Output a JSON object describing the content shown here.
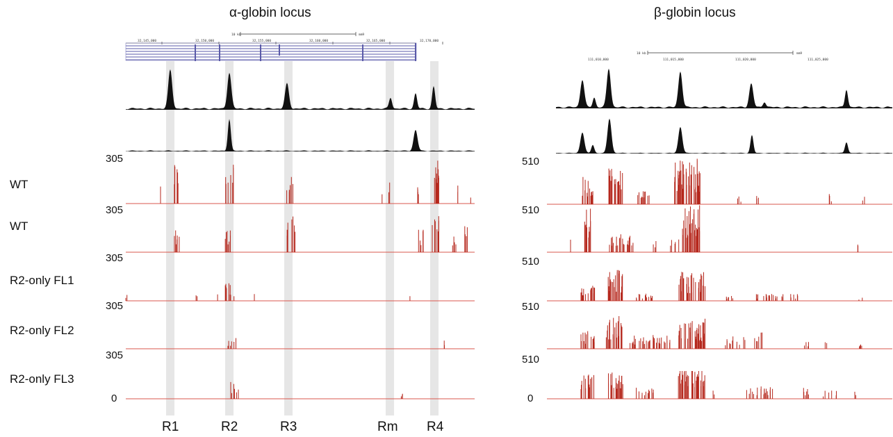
{
  "panels": {
    "alpha": {
      "title": "α-globin locus"
    },
    "beta": {
      "title": "β-globin locus"
    }
  },
  "rows": [
    {
      "label": "WT",
      "alpha_scale": "305",
      "beta_scale": "510"
    },
    {
      "label": "WT",
      "alpha_scale": "305",
      "beta_scale": "510"
    },
    {
      "label": "R2-only FL1",
      "alpha_scale": "305",
      "beta_scale": "510"
    },
    {
      "label": "R2-only FL2",
      "alpha_scale": "305",
      "beta_scale": "510"
    },
    {
      "label": "R2-only FL3",
      "alpha_scale": "305",
      "beta_scale": "510"
    }
  ],
  "scale_min": {
    "alpha": "0",
    "beta": "0"
  },
  "regions": [
    "R1",
    "R2",
    "R3",
    "Rm",
    "R4"
  ],
  "ruler": {
    "alpha": {
      "scalebar": "10 kb",
      "assembly": "mm9",
      "ticks": [
        "32,145,000",
        "32,150,000",
        "32,155,000",
        "32,160,000",
        "32,165,000",
        "32,170,000"
      ]
    },
    "beta": {
      "scalebar": "10 kb",
      "assembly": "mm9",
      "ticks": [
        "111,010,000",
        "111,015,000",
        "111,020,000",
        "111,025,000"
      ]
    }
  },
  "colors": {
    "signal": "#111111",
    "capture": "#b5271c",
    "highlight": "#e6e6e6",
    "genes": "#5a5aa8"
  }
}
